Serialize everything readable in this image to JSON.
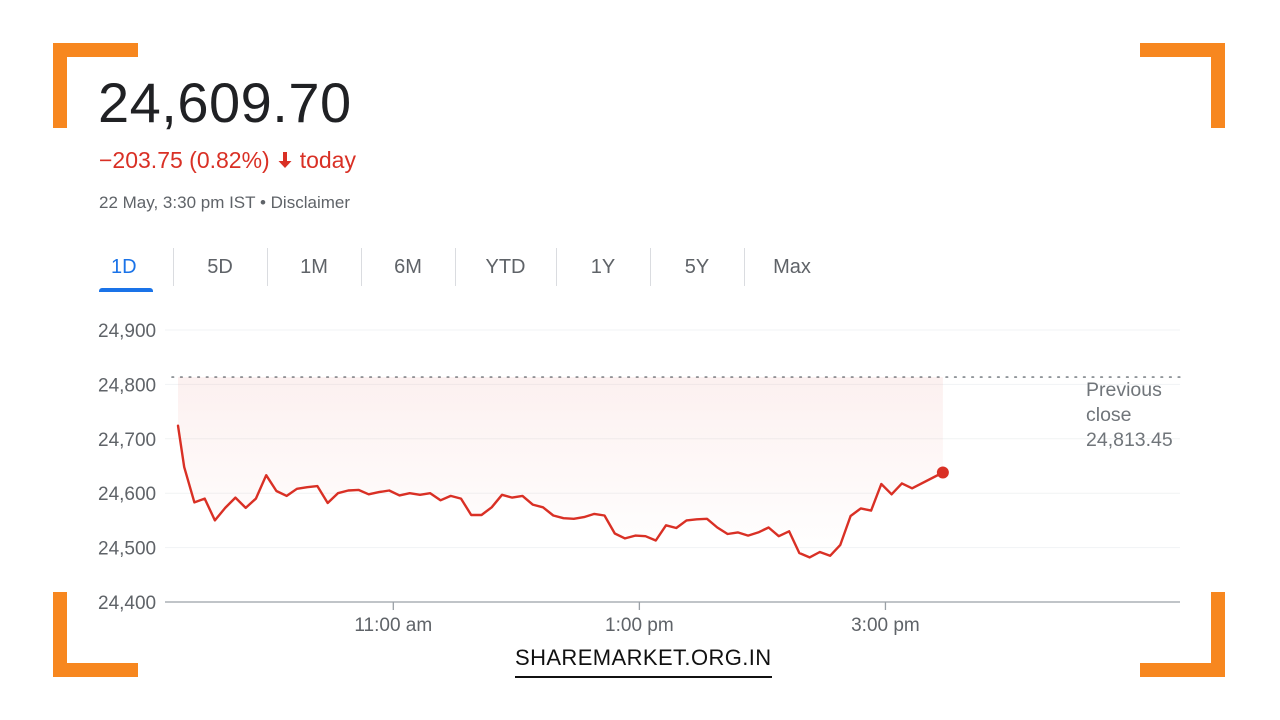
{
  "quote": {
    "price": "24,609.70",
    "change": "−203.75 (0.82%)",
    "direction_icon": "arrow-down-icon",
    "change_suffix": "today",
    "timestamp": "22 May, 3:30 pm IST",
    "separator": "•",
    "disclaimer": "Disclaimer"
  },
  "tabs": [
    {
      "label": "1D",
      "active": true
    },
    {
      "label": "5D",
      "active": false
    },
    {
      "label": "1M",
      "active": false
    },
    {
      "label": "6M",
      "active": false
    },
    {
      "label": "YTD",
      "active": false
    },
    {
      "label": "1Y",
      "active": false
    },
    {
      "label": "5Y",
      "active": false
    },
    {
      "label": "Max",
      "active": false
    }
  ],
  "colors": {
    "down": "#d93025",
    "accent": "#1a73e8",
    "bracket": "#f7871f"
  },
  "chart_data": {
    "type": "line",
    "y_ticks": [
      "24,900",
      "24,800",
      "24,700",
      "24,600",
      "24,500",
      "24,400"
    ],
    "ylim": [
      24400,
      24900
    ],
    "x_ticks": [
      {
        "label": "11:00 am",
        "minutes": 660
      },
      {
        "label": "1:00 pm",
        "minutes": 780
      },
      {
        "label": "3:00 pm",
        "minutes": 900
      }
    ],
    "xlim_minutes": [
      555,
      990
    ],
    "grid": true,
    "previous_close": {
      "label_line1": "Previous",
      "label_line2": "close",
      "value_text": "24,813.45",
      "value": 24813.45
    },
    "series": [
      {
        "x_minutes": [
          555,
          558,
          563,
          568,
          573,
          578,
          583,
          588,
          593,
          598,
          603,
          608,
          613,
          618,
          623,
          628,
          633,
          638,
          643,
          648,
          653,
          658,
          663,
          668,
          673,
          678,
          683,
          688,
          693,
          698,
          703,
          708,
          713,
          718,
          723,
          728,
          733,
          738,
          743,
          748,
          753,
          758,
          763,
          768,
          773,
          778,
          783,
          788,
          793,
          798,
          803,
          808,
          813,
          818,
          823,
          828,
          833,
          838,
          843,
          848,
          853,
          858,
          863,
          868,
          873,
          878,
          883,
          888,
          893,
          898,
          903,
          908,
          913,
          928
        ],
        "values": [
          24724,
          24648,
          24583,
          24590,
          24550,
          24573,
          24592,
          24573,
          24590,
          24633,
          24604,
          24595,
          24608,
          24611,
          24613,
          24582,
          24600,
          24605,
          24606,
          24598,
          24602,
          24605,
          24596,
          24600,
          24597,
          24600,
          24587,
          24595,
          24590,
          24560,
          24560,
          24574,
          24597,
          24592,
          24595,
          24579,
          24574,
          24559,
          24554,
          24553,
          24556,
          24562,
          24559,
          24526,
          24517,
          24522,
          24521,
          24513,
          24541,
          24536,
          24550,
          24552,
          24553,
          24537,
          24525,
          24528,
          24522,
          24528,
          24537,
          24521,
          24530,
          24490,
          24482,
          24492,
          24485,
          24505,
          24558,
          24572,
          24568,
          24617,
          24598,
          24618,
          24609,
          24638
        ]
      }
    ]
  },
  "watermark": "SHAREMARKET.ORG.IN"
}
